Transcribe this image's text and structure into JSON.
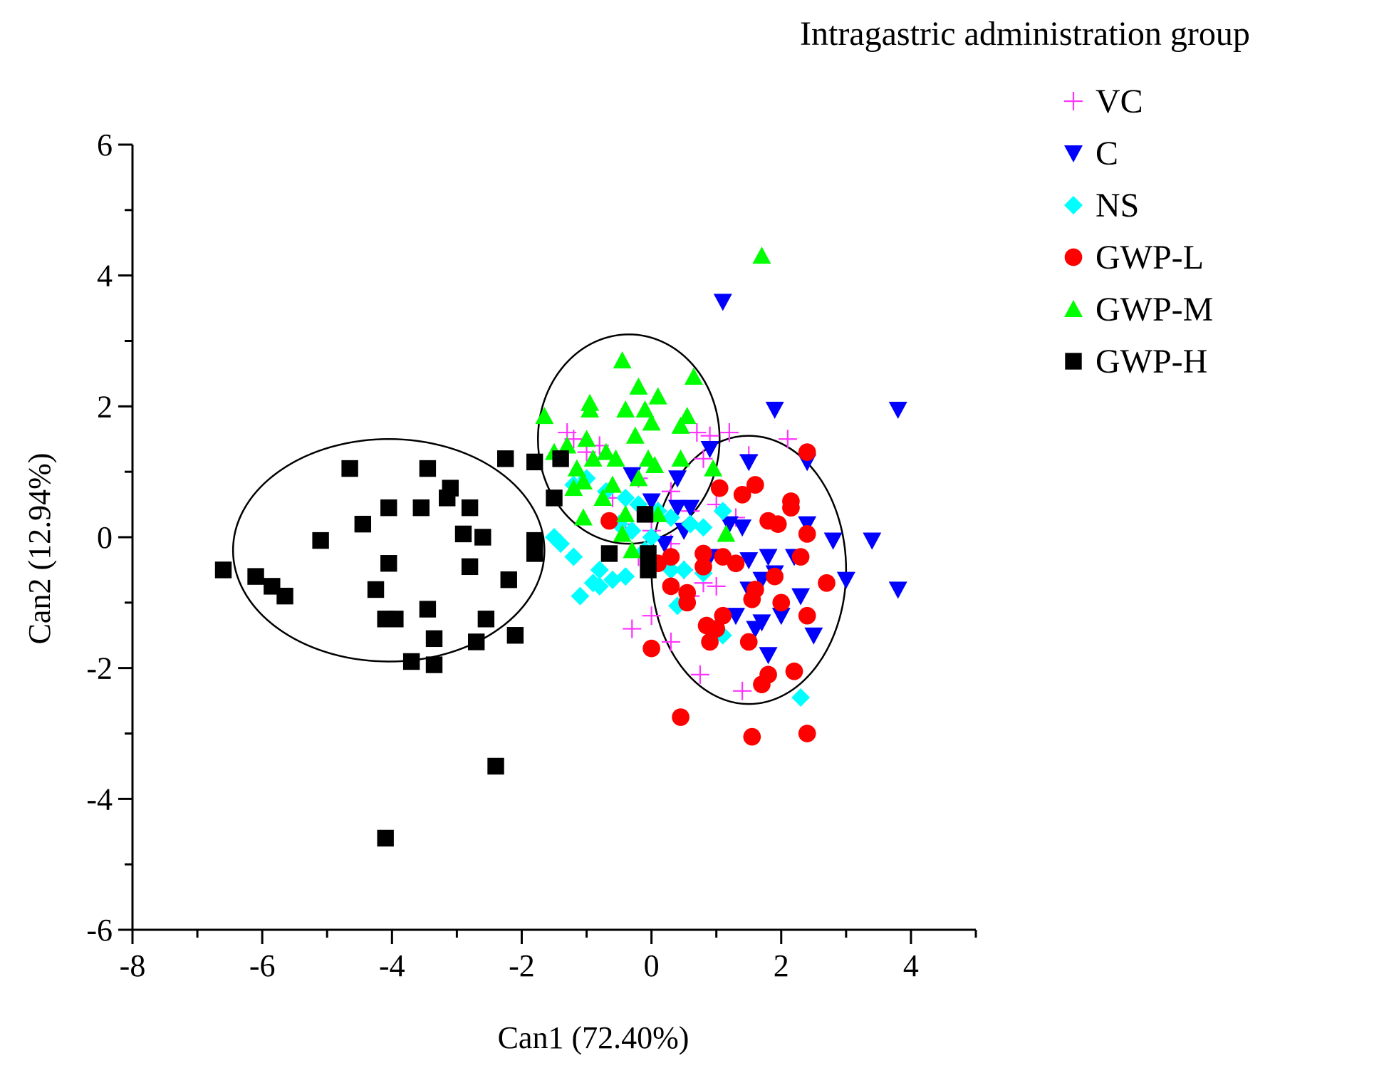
{
  "chart_data": {
    "type": "scatter",
    "title": "",
    "legend_title": "Intragastric administration group",
    "xlabel": "Can1 (72.40%)",
    "ylabel": "Can2 (12.94%)",
    "xlim": [
      -8,
      5
    ],
    "ylim": [
      -6,
      6
    ],
    "x_ticks": [
      -8,
      -6,
      -4,
      -2,
      0,
      2,
      4
    ],
    "y_ticks": [
      -6,
      -4,
      -2,
      0,
      2,
      4,
      6
    ],
    "legend_position": "top-right",
    "grid": false,
    "series": [
      {
        "name": "VC",
        "marker": "plus",
        "color": "#ff33ff",
        "points": [
          [
            -1.3,
            1.6
          ],
          [
            -1.2,
            1.5
          ],
          [
            -1.0,
            1.3
          ],
          [
            -0.8,
            1.4
          ],
          [
            0.7,
            1.6
          ],
          [
            0.9,
            1.55
          ],
          [
            1.2,
            1.6
          ],
          [
            2.1,
            1.5
          ],
          [
            1.5,
            1.25
          ],
          [
            0.8,
            1.2
          ],
          [
            -0.2,
            0.9
          ],
          [
            0.3,
            0.7
          ],
          [
            0.6,
            0.4
          ],
          [
            1.0,
            0.5
          ],
          [
            -0.4,
            0.2
          ],
          [
            0.0,
            0.1
          ],
          [
            0.3,
            -0.1
          ],
          [
            -0.2,
            -0.3
          ],
          [
            0.5,
            -0.5
          ],
          [
            0.8,
            -0.7
          ],
          [
            1.0,
            -0.75
          ],
          [
            0.6,
            -0.9
          ],
          [
            -0.3,
            -1.4
          ],
          [
            0.0,
            -1.2
          ],
          [
            0.3,
            -1.6
          ],
          [
            0.75,
            -2.1
          ],
          [
            1.4,
            -2.35
          ],
          [
            -0.6,
            0.6
          ],
          [
            1.3,
            0.3
          ],
          [
            0.1,
            0.4
          ]
        ]
      },
      {
        "name": "C",
        "marker": "triangle-down",
        "color": "#0000ff",
        "points": [
          [
            1.1,
            3.6
          ],
          [
            1.9,
            1.95
          ],
          [
            3.8,
            1.95
          ],
          [
            0.9,
            1.35
          ],
          [
            1.5,
            1.15
          ],
          [
            2.4,
            1.15
          ],
          [
            -0.3,
            0.95
          ],
          [
            0.4,
            0.9
          ],
          [
            0.0,
            0.55
          ],
          [
            0.4,
            0.45
          ],
          [
            0.6,
            0.45
          ],
          [
            1.2,
            0.2
          ],
          [
            1.4,
            0.15
          ],
          [
            2.4,
            0.2
          ],
          [
            2.8,
            -0.05
          ],
          [
            3.4,
            -0.05
          ],
          [
            0.9,
            -0.3
          ],
          [
            1.5,
            -0.35
          ],
          [
            1.8,
            -0.3
          ],
          [
            2.2,
            -0.3
          ],
          [
            1.9,
            -0.55
          ],
          [
            1.7,
            -0.65
          ],
          [
            1.5,
            -0.8
          ],
          [
            3.0,
            -0.65
          ],
          [
            3.8,
            -0.8
          ],
          [
            2.3,
            -0.9
          ],
          [
            1.3,
            -1.2
          ],
          [
            1.7,
            -1.3
          ],
          [
            2.0,
            -1.2
          ],
          [
            2.5,
            -1.5
          ],
          [
            1.8,
            -1.8
          ],
          [
            1.6,
            -1.4
          ],
          [
            0.2,
            -0.1
          ],
          [
            0.5,
            0.1
          ]
        ]
      },
      {
        "name": "NS",
        "marker": "diamond",
        "color": "#00ffff",
        "points": [
          [
            -1.2,
            0.8
          ],
          [
            -1.0,
            0.9
          ],
          [
            -0.7,
            0.7
          ],
          [
            -0.4,
            0.6
          ],
          [
            -0.2,
            0.5
          ],
          [
            0.1,
            0.4
          ],
          [
            0.3,
            0.3
          ],
          [
            0.6,
            0.2
          ],
          [
            0.8,
            0.15
          ],
          [
            1.1,
            0.4
          ],
          [
            -1.5,
            0.0
          ],
          [
            -1.4,
            -0.1
          ],
          [
            -1.2,
            -0.3
          ],
          [
            -0.8,
            -0.5
          ],
          [
            -0.6,
            -0.65
          ],
          [
            -0.8,
            -0.75
          ],
          [
            -0.9,
            -0.7
          ],
          [
            -1.1,
            -0.9
          ],
          [
            -0.4,
            -0.6
          ],
          [
            0.0,
            -0.4
          ],
          [
            0.3,
            -0.5
          ],
          [
            0.5,
            -0.5
          ],
          [
            0.8,
            -0.55
          ],
          [
            1.1,
            -1.5
          ],
          [
            0.4,
            -1.05
          ],
          [
            2.3,
            -2.45
          ],
          [
            -0.3,
            0.1
          ],
          [
            0.0,
            0.0
          ],
          [
            -0.1,
            -0.2
          ],
          [
            -0.5,
            0.2
          ]
        ]
      },
      {
        "name": "GWP-L",
        "marker": "circle",
        "color": "#ff0000",
        "points": [
          [
            2.4,
            1.3
          ],
          [
            1.05,
            0.75
          ],
          [
            1.4,
            0.65
          ],
          [
            1.6,
            0.8
          ],
          [
            2.15,
            0.55
          ],
          [
            2.15,
            0.45
          ],
          [
            -0.65,
            0.25
          ],
          [
            1.8,
            0.25
          ],
          [
            1.95,
            0.2
          ],
          [
            2.4,
            0.05
          ],
          [
            0.3,
            -0.3
          ],
          [
            0.8,
            -0.25
          ],
          [
            1.1,
            -0.3
          ],
          [
            1.3,
            -0.4
          ],
          [
            2.3,
            -0.3
          ],
          [
            0.8,
            -0.45
          ],
          [
            0.3,
            -0.75
          ],
          [
            0.55,
            -0.85
          ],
          [
            2.7,
            -0.7
          ],
          [
            1.6,
            -0.8
          ],
          [
            1.55,
            -0.95
          ],
          [
            2.0,
            -1.0
          ],
          [
            0.55,
            -1.0
          ],
          [
            1.1,
            -1.2
          ],
          [
            2.4,
            -1.2
          ],
          [
            0.85,
            -1.35
          ],
          [
            0.9,
            -1.6
          ],
          [
            1.5,
            -1.6
          ],
          [
            0.0,
            -1.7
          ],
          [
            1.7,
            -2.25
          ],
          [
            1.8,
            -2.1
          ],
          [
            2.2,
            -2.05
          ],
          [
            0.45,
            -2.75
          ],
          [
            1.55,
            -3.05
          ],
          [
            2.4,
            -3.0
          ],
          [
            0.1,
            -0.4
          ],
          [
            1.0,
            -1.4
          ],
          [
            1.9,
            -0.6
          ]
        ]
      },
      {
        "name": "GWP-M",
        "marker": "triangle-up",
        "color": "#00ff00",
        "points": [
          [
            1.7,
            4.3
          ],
          [
            -0.45,
            2.7
          ],
          [
            -0.2,
            2.3
          ],
          [
            0.65,
            2.45
          ],
          [
            -1.65,
            1.85
          ],
          [
            -0.95,
            2.05
          ],
          [
            -0.4,
            1.95
          ],
          [
            -0.1,
            1.95
          ],
          [
            0.1,
            2.15
          ],
          [
            0.55,
            1.85
          ],
          [
            -1.3,
            1.4
          ],
          [
            -1.0,
            1.5
          ],
          [
            -0.7,
            1.3
          ],
          [
            -0.25,
            1.55
          ],
          [
            0.0,
            1.75
          ],
          [
            0.45,
            1.7
          ],
          [
            -1.5,
            1.3
          ],
          [
            -1.15,
            1.05
          ],
          [
            -0.9,
            1.2
          ],
          [
            -0.55,
            1.2
          ],
          [
            -0.05,
            1.2
          ],
          [
            0.45,
            1.2
          ],
          [
            -1.2,
            0.75
          ],
          [
            -1.05,
            0.85
          ],
          [
            -0.75,
            0.6
          ],
          [
            -0.2,
            0.9
          ],
          [
            0.95,
            1.05
          ],
          [
            -0.4,
            0.35
          ],
          [
            -1.05,
            0.3
          ],
          [
            0.1,
            0.35
          ],
          [
            1.15,
            0.05
          ],
          [
            -0.45,
            0.05
          ],
          [
            -0.3,
            -0.2
          ],
          [
            0.05,
            1.1
          ],
          [
            -0.95,
            1.95
          ],
          [
            -0.6,
            0.8
          ]
        ]
      },
      {
        "name": "GWP-H",
        "marker": "square",
        "color": "#000000",
        "points": [
          [
            -6.6,
            -0.5
          ],
          [
            -6.1,
            -0.6
          ],
          [
            -5.85,
            -0.75
          ],
          [
            -5.65,
            -0.9
          ],
          [
            -5.1,
            -0.05
          ],
          [
            -4.65,
            1.05
          ],
          [
            -4.45,
            0.2
          ],
          [
            -4.25,
            -0.8
          ],
          [
            -4.1,
            -1.25
          ],
          [
            -4.05,
            0.45
          ],
          [
            -4.05,
            -0.4
          ],
          [
            -3.95,
            -1.25
          ],
          [
            -3.55,
            0.45
          ],
          [
            -3.45,
            1.05
          ],
          [
            -3.45,
            -1.1
          ],
          [
            -3.35,
            -1.55
          ],
          [
            -3.35,
            -1.95
          ],
          [
            -3.7,
            -1.9
          ],
          [
            -3.15,
            0.6
          ],
          [
            -3.1,
            0.75
          ],
          [
            -2.9,
            0.05
          ],
          [
            -2.8,
            0.45
          ],
          [
            -2.8,
            -0.45
          ],
          [
            -2.7,
            -1.6
          ],
          [
            -2.6,
            0.0
          ],
          [
            -2.55,
            -1.25
          ],
          [
            -2.25,
            1.2
          ],
          [
            -2.2,
            -0.65
          ],
          [
            -2.1,
            -1.5
          ],
          [
            -1.8,
            -0.25
          ],
          [
            -1.8,
            -0.05
          ],
          [
            -1.8,
            1.15
          ],
          [
            -1.5,
            0.6
          ],
          [
            -1.4,
            1.2
          ],
          [
            -0.65,
            -0.25
          ],
          [
            -0.1,
            0.35
          ],
          [
            -0.05,
            -0.5
          ],
          [
            -0.05,
            -0.25
          ],
          [
            -2.4,
            -3.5
          ],
          [
            -4.1,
            -4.6
          ]
        ]
      }
    ],
    "ellipses": [
      {
        "group": "GWP-H",
        "cx": -4.05,
        "cy": -0.2,
        "rx": 2.4,
        "ry": 1.7
      },
      {
        "group": "GWP-M",
        "cx": -0.35,
        "cy": 1.5,
        "rx": 1.4,
        "ry": 1.6
      },
      {
        "group": "GWP-L",
        "cx": 1.5,
        "cy": -0.5,
        "rx": 1.5,
        "ry": 2.05
      }
    ]
  }
}
